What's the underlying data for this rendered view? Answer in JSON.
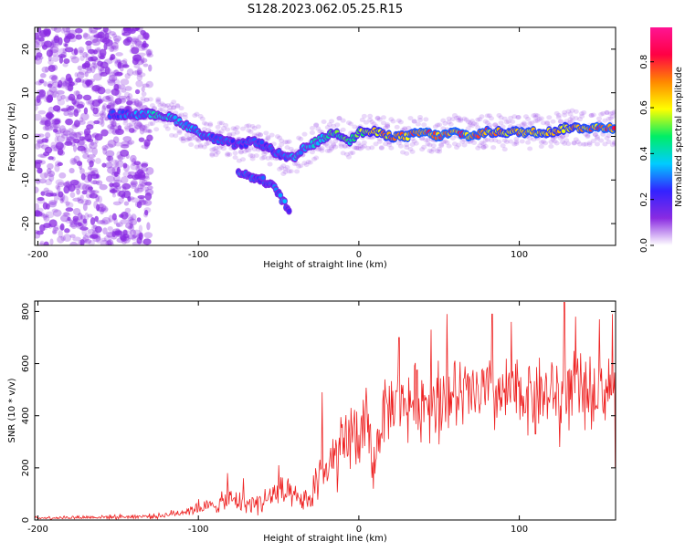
{
  "title": "S128.2023.062.05.25.R15",
  "colors": {
    "snr_line": "#ee2222",
    "background": "#ffffff",
    "noise_speckle": "#8a2be2",
    "colormap": [
      "#ffffff",
      "#8a2be2",
      "#3322ff",
      "#00ccff",
      "#00ee66",
      "#ffff00",
      "#ff8800",
      "#ff0044",
      "#ff1493"
    ]
  },
  "chart_data": [
    {
      "type": "heatmap",
      "xlabel": "Height of straight line (km)",
      "ylabel": "Frequency (Hz)",
      "xlim": [
        -202,
        160
      ],
      "ylim": [
        -25,
        25
      ],
      "xticks": [
        -200,
        -100,
        0,
        100
      ],
      "yticks": [
        -20,
        -10,
        0,
        10,
        20
      ],
      "colorbar": {
        "label": "Normalized spectral amplitude",
        "range": [
          0.0,
          0.95
        ],
        "ticks": [
          "0.0",
          "0.2",
          "0.4",
          "0.6",
          "0.8"
        ]
      },
      "ridge": {
        "x": [
          -155,
          -140,
          -125,
          -115,
          -105,
          -95,
          -85,
          -75,
          -65,
          -55,
          -45,
          -40,
          -35,
          -30,
          -25,
          -20,
          -15,
          -10,
          -5,
          0,
          10,
          20,
          30,
          40,
          50,
          60,
          70,
          80,
          90,
          100,
          110,
          120,
          130,
          140,
          150,
          160
        ],
        "y": [
          5,
          5,
          5,
          4,
          2,
          0,
          -1,
          -2,
          -1,
          -3,
          -5,
          -5,
          -3,
          -2,
          -1,
          0,
          1,
          0,
          -1,
          1,
          1,
          0,
          0,
          1,
          0,
          1,
          0,
          1,
          1,
          1,
          1,
          1,
          2,
          2,
          2,
          2
        ],
        "intensity": [
          0.3,
          0.35,
          0.45,
          0.4,
          0.4,
          0.35,
          0.35,
          0.3,
          0.3,
          0.3,
          0.35,
          0.4,
          0.4,
          0.45,
          0.45,
          0.5,
          0.55,
          0.55,
          0.55,
          0.6,
          0.7,
          0.8,
          0.8,
          0.85,
          0.85,
          0.85,
          0.85,
          0.8,
          0.75,
          0.8,
          0.8,
          0.75,
          0.75,
          0.8,
          0.85,
          0.85
        ]
      },
      "branch": {
        "x": [
          -75,
          -70,
          -60,
          -55,
          -50,
          -47,
          -45,
          -43
        ],
        "y": [
          -8,
          -9,
          -10,
          -11,
          -13,
          -15,
          -16,
          -18
        ],
        "intensity": [
          0.35,
          0.3,
          0.3,
          0.3,
          0.35,
          0.4,
          0.3,
          0.25
        ]
      },
      "noise_region_x": [
        -202,
        -130
      ]
    },
    {
      "type": "line",
      "xlabel": "Height of straight line (km)",
      "ylabel": "SNR (10 * v/v)",
      "xlim": [
        -202,
        160
      ],
      "ylim": [
        0,
        840
      ],
      "xticks": [
        -200,
        -100,
        0,
        100
      ],
      "yticks": [
        0,
        200,
        400,
        600,
        800
      ],
      "envelope": {
        "x": [
          -202,
          -150,
          -125,
          -115,
          -100,
          -90,
          -80,
          -70,
          -60,
          -50,
          -40,
          -30,
          -25,
          -20,
          -15,
          -10,
          -5,
          0,
          5,
          10,
          15,
          20,
          30,
          40,
          50,
          60,
          70,
          80,
          90,
          100,
          110,
          120,
          130,
          140,
          150,
          160
        ],
        "base": [
          8,
          12,
          15,
          25,
          45,
          55,
          80,
          60,
          70,
          110,
          80,
          70,
          190,
          170,
          230,
          260,
          300,
          330,
          340,
          230,
          420,
          440,
          450,
          460,
          480,
          470,
          480,
          480,
          470,
          480,
          490,
          480,
          500,
          490,
          500,
          510
        ],
        "spread": [
          8,
          10,
          12,
          18,
          30,
          35,
          60,
          40,
          60,
          90,
          60,
          50,
          180,
          120,
          160,
          170,
          180,
          170,
          200,
          110,
          150,
          150,
          170,
          180,
          180,
          180,
          170,
          180,
          180,
          170,
          180,
          170,
          180,
          170,
          160,
          150
        ]
      },
      "peaks": [
        {
          "x": -100,
          "y": 80
        },
        {
          "x": -82,
          "y": 180
        },
        {
          "x": -72,
          "y": 160
        },
        {
          "x": -50,
          "y": 210
        },
        {
          "x": -23,
          "y": 490
        },
        {
          "x": -5,
          "y": 430
        },
        {
          "x": 9,
          "y": 790
        },
        {
          "x": 25,
          "y": 700
        },
        {
          "x": 45,
          "y": 730
        },
        {
          "x": 55,
          "y": 790
        },
        {
          "x": 83,
          "y": 790
        },
        {
          "x": 95,
          "y": 760
        },
        {
          "x": 128,
          "y": 835
        },
        {
          "x": 135,
          "y": 780
        },
        {
          "x": 150,
          "y": 770
        },
        {
          "x": 158,
          "y": 790
        }
      ],
      "troughs": [
        {
          "x": 9,
          "y": 120
        },
        {
          "x": 50,
          "y": 290
        },
        {
          "x": 110,
          "y": 330
        },
        {
          "x": 125,
          "y": 280
        },
        {
          "x": 160,
          "y": 200
        }
      ]
    }
  ]
}
